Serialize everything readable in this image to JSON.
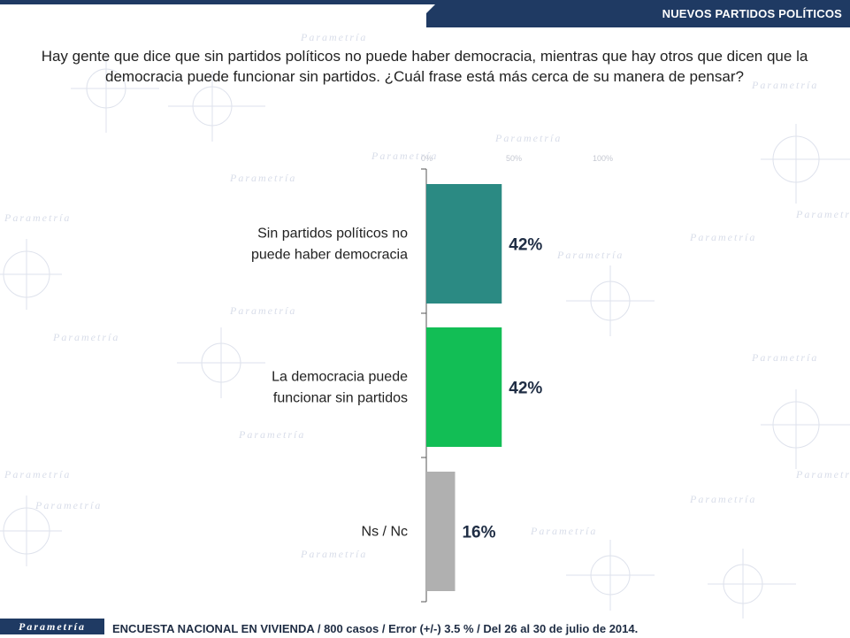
{
  "header": {
    "section_title": "NUEVOS PARTIDOS POLÍTICOS"
  },
  "question": "Hay gente que dice que sin partidos políticos no puede haber democracia, mientras que hay otros que dicen que la democracia puede funcionar sin partidos. ¿Cuál frase está más cerca de su manera de pensar?",
  "watermark": {
    "brand": "Parametría"
  },
  "chart_data": {
    "type": "bar",
    "orientation": "horizontal",
    "categories": [
      [
        "Sin partidos políticos no",
        "puede haber democracia"
      ],
      [
        "La democracia puede",
        "funcionar sin partidos"
      ],
      [
        "Ns / Nc"
      ]
    ],
    "values": [
      42,
      42,
      16
    ],
    "value_labels": [
      "42%",
      "42%",
      "16%"
    ],
    "colors": [
      "#2b8a83",
      "#12be55",
      "#b0b0b0"
    ],
    "xlim": [
      0,
      100
    ],
    "ghost_ticks": [
      "0%",
      "50%",
      "100%"
    ],
    "grid": false,
    "legend": "none"
  },
  "footer": {
    "logo": "Parametría",
    "source": "ENCUESTA NACIONAL EN VIVIENDA / 800 casos / Error (+/-) 3.5 % / Del 26 al 30 de julio de 2014."
  }
}
